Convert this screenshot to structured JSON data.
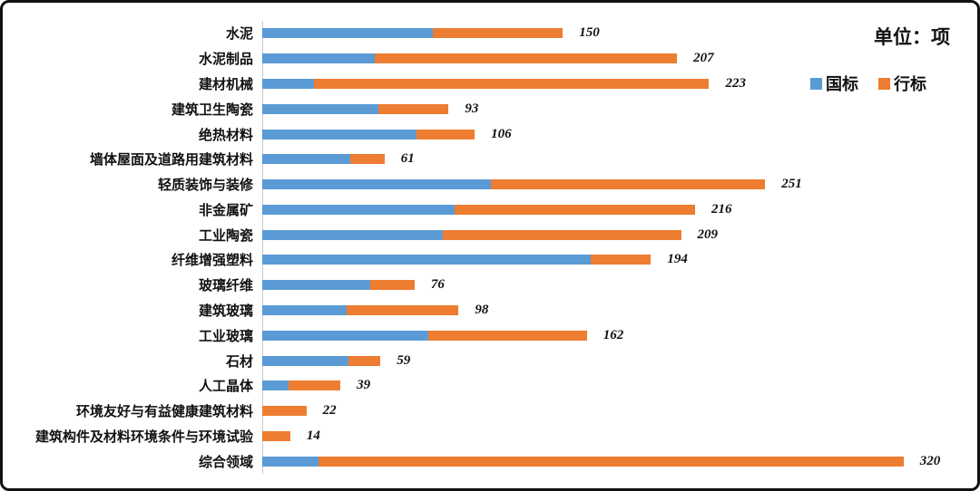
{
  "unit_label": "单位：项",
  "chart_data": {
    "type": "bar",
    "orientation": "horizontal",
    "stacked": true,
    "title": "",
    "unit_label": "单位：项",
    "xlim": [
      0,
      355
    ],
    "grid": false,
    "legend_position": "top-right",
    "legend": [
      {
        "name": "国标",
        "color": "#5B9BD5"
      },
      {
        "name": "行标",
        "color": "#ED7D31"
      }
    ],
    "categories": [
      "水泥",
      "水泥制品",
      "建材机械",
      "建筑卫生陶瓷",
      "绝热材料",
      "墙体屋面及道路用建筑材料",
      "轻质装饰与装修",
      "非金属矿",
      "工业陶瓷",
      "纤维增强塑料",
      "玻璃纤维",
      "建筑玻璃",
      "工业玻璃",
      "石材",
      "人工晶体",
      "环境友好与有益健康建筑材料",
      "建筑构件及材料环境条件与环境试验",
      "综合领域"
    ],
    "series": [
      {
        "name": "国标",
        "color": "#5B9BD5",
        "values": [
          85,
          56,
          26,
          58,
          77,
          44,
          114,
          96,
          90,
          164,
          54,
          42,
          83,
          43,
          13,
          0,
          0,
          28
        ]
      },
      {
        "name": "行标",
        "color": "#ED7D31",
        "values": [
          65,
          151,
          197,
          35,
          29,
          17,
          137,
          120,
          119,
          30,
          22,
          56,
          79,
          16,
          26,
          22,
          14,
          292
        ]
      }
    ],
    "totals": [
      150,
      207,
      223,
      93,
      106,
      61,
      251,
      216,
      209,
      194,
      76,
      98,
      162,
      59,
      39,
      22,
      14,
      320
    ]
  }
}
